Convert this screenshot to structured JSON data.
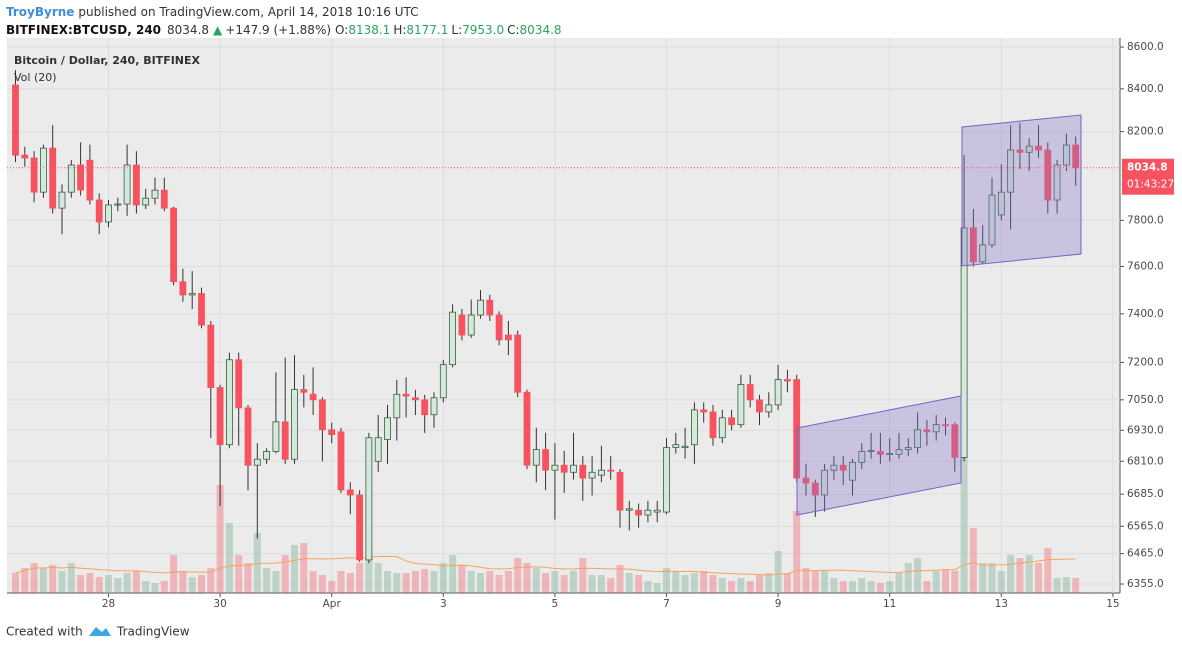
{
  "header": {
    "author": "TroyByrne",
    "published": "published on TradingView.com, April 14, 2018 10:16 UTC",
    "symbol": "BITFINEX:BTCUSD, 240",
    "last": "8034.8",
    "arrow": "▲",
    "change": "+147.9 (+1.88%)",
    "quote": [
      {
        "label": "O:",
        "value": "8138.1"
      },
      {
        "label": "H:",
        "value": "8177.1"
      },
      {
        "label": "L:",
        "value": "7953.0"
      },
      {
        "label": "C:",
        "value": "8034.8"
      }
    ]
  },
  "price_tag": "8034.8",
  "countdown": "01:43:27",
  "footer": {
    "created": "Created with",
    "brand": "TradingView"
  },
  "chart_data": {
    "type": "candlestick",
    "title": "Bitcoin / Dollar, 240, BITFINEX",
    "volume_title": "Vol (20)",
    "log_scale": true,
    "grid": true,
    "up_color": "#6ba583",
    "down_color": "#f7525f",
    "ylim": [
      6323,
      8644
    ],
    "yticks": [
      {
        "value": 8600,
        "label": "8600.0"
      },
      {
        "value": 8400,
        "label": "8400.0"
      },
      {
        "value": 8200,
        "label": "8200.0"
      },
      {
        "value": 7800,
        "label": "7800.0"
      },
      {
        "value": 7600,
        "label": "7600.0"
      },
      {
        "value": 7400,
        "label": "7400.0"
      },
      {
        "value": 7200,
        "label": "7200.0"
      },
      {
        "value": 7050,
        "label": "7050.0"
      },
      {
        "value": 6930,
        "label": "6930.0"
      },
      {
        "value": 6810,
        "label": "6810.0"
      },
      {
        "value": 6685,
        "label": "6685.0"
      },
      {
        "value": 6565,
        "label": "6565.0"
      },
      {
        "value": 6465,
        "label": "6465.0"
      },
      {
        "value": 6355,
        "label": "6355.0"
      }
    ],
    "xticks": [
      {
        "value": 10,
        "label": "28"
      },
      {
        "value": 22,
        "label": "30"
      },
      {
        "value": 34,
        "label": "Apr"
      },
      {
        "value": 46,
        "label": "3"
      },
      {
        "value": 58,
        "label": "5"
      },
      {
        "value": 70,
        "label": "7"
      },
      {
        "value": 82,
        "label": "9"
      },
      {
        "value": 94,
        "label": "11"
      },
      {
        "value": 106,
        "label": "13"
      },
      {
        "value": 118,
        "label": "15"
      }
    ],
    "open": [
      8418,
      8092,
      8079,
      7925,
      8124,
      7854,
      7925,
      8047,
      8069,
      7890,
      7793,
      7868,
      7872,
      8047,
      7868,
      7898,
      7934,
      7854,
      7535,
      7479,
      7485,
      7353,
      7099,
      6874,
      7211,
      7018,
      6795,
      6818,
      6848,
      6963,
      6818,
      7091,
      7072,
      7050,
      6932,
      6924,
      6701,
      6682,
      6442,
      6810,
      6894,
      6979,
      7072,
      7058,
      7050,
      6991,
      7058,
      7191,
      7395,
      7312,
      7395,
      7457,
      7395,
      7312,
      7312,
      7080,
      6795,
      6855,
      6776,
      6795,
      6768,
      6795,
      6746,
      6757,
      6776,
      6768,
      6625,
      6625,
      6607,
      6618,
      6618,
      6863,
      6863,
      6874,
      7010,
      7002,
      6901,
      6979,
      6952,
      7111,
      7050,
      7002,
      7030,
      7131,
      7131,
      6746,
      6727,
      6682,
      6776,
      6795,
      6738,
      6806,
      6848,
      6848,
      6837,
      6837,
      6855,
      6863,
      6932,
      6924,
      6952,
      6952,
      6825,
      7767,
      7620,
      7693,
      7824,
      7925,
      8115,
      8105,
      8133,
      8115,
      7890,
      8047,
      8138.1
    ],
    "high": [
      8489,
      8130,
      8110,
      8140,
      8230,
      7960,
      8070,
      8150,
      8140,
      7920,
      7890,
      7900,
      8140,
      8110,
      7940,
      7990,
      7990,
      7860,
      7590,
      7580,
      7510,
      7370,
      7110,
      7240,
      7240,
      7030,
      6880,
      6860,
      7160,
      7220,
      7230,
      7150,
      7180,
      7060,
      6960,
      6940,
      6730,
      6700,
      6920,
      6990,
      7030,
      7130,
      7140,
      7090,
      7070,
      7080,
      7210,
      7440,
      7420,
      7460,
      7500,
      7480,
      7410,
      7370,
      7330,
      7090,
      6940,
      6920,
      6880,
      6850,
      6920,
      6830,
      6830,
      6870,
      6830,
      6780,
      6660,
      6650,
      6660,
      6660,
      6900,
      6920,
      6940,
      7040,
      7040,
      7030,
      7010,
      7010,
      7150,
      7150,
      7070,
      7080,
      7190,
      7170,
      7150,
      6800,
      6740,
      6800,
      6830,
      6830,
      6820,
      6880,
      6920,
      6920,
      6900,
      6920,
      6900,
      7000,
      6970,
      6990,
      6980,
      6960,
      8092,
      7850,
      7780,
      7990,
      8050,
      8230,
      8240,
      8170,
      8230,
      8150,
      8070,
      8190,
      8177.1
    ],
    "low": [
      8060,
      8040,
      7880,
      7900,
      7830,
      7740,
      7900,
      7910,
      7870,
      7740,
      7770,
      7840,
      7820,
      7830,
      7850,
      7870,
      7840,
      7520,
      7450,
      7420,
      7340,
      6900,
      6640,
      6860,
      6870,
      6700,
      6520,
      6800,
      6840,
      6800,
      6800,
      7020,
      6990,
      6810,
      6880,
      6690,
      6610,
      6435,
      6430,
      6770,
      6800,
      6890,
      6980,
      6990,
      6920,
      6940,
      7040,
      7180,
      7290,
      7300,
      7380,
      7370,
      7270,
      7230,
      7060,
      6780,
      6730,
      6700,
      6590,
      6690,
      6740,
      6660,
      6680,
      6730,
      6740,
      6560,
      6550,
      6560,
      6580,
      6580,
      6610,
      6840,
      6820,
      6800,
      6960,
      6870,
      6880,
      6930,
      6940,
      7020,
      6950,
      6980,
      7010,
      7080,
      6730,
      6680,
      6600,
      6620,
      6740,
      6720,
      6680,
      6780,
      6820,
      6800,
      6810,
      6820,
      6830,
      6840,
      6870,
      6890,
      6910,
      6770,
      6810,
      7600,
      7610,
      7680,
      7800,
      7760,
      8030,
      8020,
      8080,
      7830,
      7830,
      8020,
      7953
    ],
    "close": [
      8092,
      8079,
      7925,
      8124,
      7854,
      7925,
      8047,
      7934,
      7890,
      7793,
      7868,
      7872,
      8047,
      7868,
      7898,
      7934,
      7854,
      7535,
      7479,
      7485,
      7353,
      7099,
      6874,
      7211,
      7018,
      6795,
      6818,
      6848,
      6963,
      6818,
      7091,
      7080,
      7050,
      6932,
      6913,
      6701,
      6682,
      6442,
      6901,
      6901,
      6979,
      7072,
      7065,
      7050,
      6991,
      7058,
      7191,
      7407,
      7312,
      7395,
      7457,
      7395,
      7292,
      7292,
      7080,
      6795,
      6855,
      6776,
      6795,
      6768,
      6795,
      6746,
      6768,
      6776,
      6772,
      6625,
      6630,
      6607,
      6625,
      6625,
      6863,
      6874,
      6868,
      7010,
      7002,
      6901,
      6979,
      6952,
      7111,
      7050,
      7002,
      7030,
      7131,
      7125,
      6746,
      6727,
      6682,
      6776,
      6795,
      6776,
      6806,
      6848,
      6852,
      6837,
      6840,
      6855,
      6863,
      6932,
      6924,
      6952,
      6948,
      6825,
      7767,
      7620,
      7693,
      7912,
      7925,
      8115,
      8105,
      8133,
      8115,
      7890,
      8047,
      8138.1,
      8034.8
    ],
    "volume_ylim": [
      0,
      555
    ],
    "volume": [
      20,
      25,
      30,
      25,
      28,
      22,
      30,
      18,
      20,
      16,
      18,
      15,
      20,
      22,
      12,
      10,
      12,
      38,
      22,
      16,
      18,
      25,
      108,
      70,
      38,
      30,
      60,
      25,
      22,
      38,
      48,
      50,
      22,
      18,
      12,
      22,
      20,
      30,
      42,
      30,
      22,
      20,
      20,
      22,
      24,
      22,
      30,
      38,
      28,
      22,
      20,
      22,
      18,
      22,
      35,
      30,
      25,
      20,
      22,
      18,
      22,
      35,
      18,
      18,
      15,
      28,
      20,
      18,
      12,
      10,
      25,
      22,
      18,
      20,
      22,
      18,
      15,
      12,
      15,
      12,
      18,
      20,
      42,
      20,
      82,
      25,
      22,
      22,
      15,
      12,
      12,
      15,
      12,
      10,
      12,
      20,
      30,
      35,
      12,
      22,
      24,
      22,
      137,
      65,
      30,
      30,
      22,
      38,
      35,
      38,
      30,
      45,
      15,
      16,
      15
    ]
  }
}
